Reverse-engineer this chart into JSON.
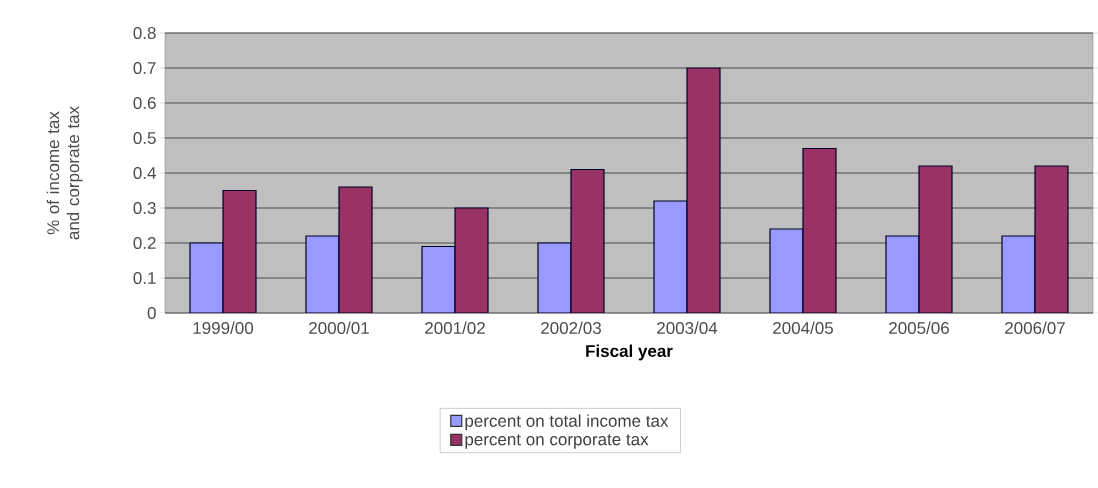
{
  "chart_data": {
    "type": "bar",
    "xlabel": "Fiscal year",
    "ylabel": "% of income tax and corporate tax",
    "categories": [
      "1999/00",
      "2000/01",
      "2001/02",
      "2002/03",
      "2003/04",
      "2004/05",
      "2005/06",
      "2006/07"
    ],
    "series": [
      {
        "name": "percent on total income tax",
        "color": "#9999ff",
        "values": [
          0.2,
          0.22,
          0.19,
          0.2,
          0.32,
          0.24,
          0.22,
          0.22
        ]
      },
      {
        "name": "percent on corporate tax",
        "color": "#993366",
        "values": [
          0.35,
          0.36,
          0.3,
          0.41,
          0.7,
          0.47,
          0.42,
          0.42
        ]
      }
    ],
    "ylim": [
      0,
      0.8
    ],
    "yticks": [
      0,
      0.1,
      0.2,
      0.3,
      0.4,
      0.5,
      0.6,
      0.7,
      0.8
    ],
    "grid": "y",
    "legend": "bottom"
  }
}
